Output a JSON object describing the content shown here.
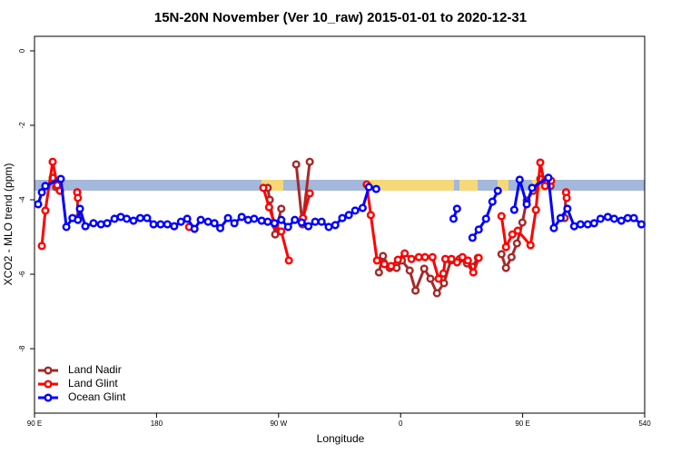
{
  "chart_data": {
    "type": "line",
    "title": "15N-20N November (Ver 10_raw)   2015-01-01 to 2020-12-31",
    "x_label": "Longitude",
    "y_label": "XCO2 - MLO trend (ppm)",
    "xlim": [
      90,
      540
    ],
    "ylim": [
      -9.73,
      0.39
    ],
    "xticks": [
      {
        "value": 90,
        "label": "90 E"
      },
      180,
      {
        "value": 270,
        "label": "90 W"
      },
      {
        "value": 360,
        "label": "0"
      },
      {
        "value": 450,
        "label": "90 E"
      },
      540
    ],
    "yticks": [
      -8,
      -6,
      -4,
      -2,
      0
    ],
    "legend": "bottom-left",
    "series": [
      {
        "name": "Land Nadir",
        "color": "#a52a2a",
        "x": [
          103.4,
          106,
          115,
          121.5,
          122,
          200,
          262,
          263.5,
          267.5,
          272,
          280,
          283,
          287.6,
          293,
          330,
          344,
          347,
          352,
          357,
          361,
          366.7,
          371,
          377.4,
          382,
          386.8,
          392,
          397,
          403.6,
          409,
          413,
          417,
          425,
          434.4,
          437.7,
          441.8,
          445.8,
          449.8,
          453,
          457.8,
          463,
          466.5,
          470.6,
          476,
          481,
          482
        ],
        "values": [
          -3.41,
          -3.66,
          null,
          -3.8,
          -4.49,
          null,
          -3.68,
          -4.0,
          -4.93,
          -4.24,
          null,
          -3.05,
          -4.66,
          -2.98,
          null,
          -5.95,
          -5.51,
          -5.83,
          -5.83,
          -5.63,
          -5.9,
          -6.44,
          -5.85,
          -6.12,
          -6.51,
          -6.24,
          -5.63,
          -5.59,
          -5.71,
          -5.8,
          -5.56,
          null,
          -5.46,
          -5.83,
          -5.54,
          -5.17,
          -4.61,
          -4.02,
          -3.76,
          -3.44,
          -3.49,
          -3.63,
          null,
          -4.49,
          -3.8
        ]
      },
      {
        "name": "Land Glint",
        "color": "#ff0000",
        "x": [
          95.4,
          98,
          103.4,
          106.8,
          108.8,
          115,
          121.5,
          122,
          160,
          204,
          230,
          258.8,
          263,
          267.5,
          272,
          277.6,
          285,
          288,
          293,
          320,
          335,
          338,
          342.6,
          348,
          353,
          358,
          363,
          368,
          373.4,
          378,
          383.5,
          388,
          391.5,
          393,
          397.5,
          401.6,
          405.6,
          409.6,
          413.6,
          417.6,
          425,
          434.4,
          437.7,
          442.4,
          446.4,
          455.8,
          459.8,
          463,
          466.5,
          471,
          476,
          482,
          482.5
        ],
        "values": [
          -5.24,
          -4.29,
          -2.98,
          -3.61,
          -3.76,
          null,
          -3.8,
          -3.95,
          null,
          -4.73,
          null,
          -3.68,
          -4.2,
          -4.68,
          -4.85,
          -5.63,
          null,
          -4.49,
          -3.83,
          null,
          -3.59,
          -4.41,
          -5.63,
          -5.73,
          -5.78,
          -5.61,
          -5.44,
          -5.59,
          -5.54,
          -5.54,
          -5.54,
          -6.12,
          -5.98,
          -5.59,
          -5.59,
          -5.68,
          -5.54,
          -5.63,
          -5.95,
          -5.56,
          null,
          -4.44,
          -5.27,
          -4.93,
          -4.83,
          -5.22,
          -4.27,
          -3.0,
          -3.63,
          -3.49,
          null,
          -3.8,
          -3.95
        ]
      },
      {
        "name": "Ocean Glint",
        "color": "#0000ff",
        "x": [
          92.7,
          95.4,
          98,
          109.4,
          113.5,
          118,
          122,
          123.5,
          127.5,
          133.5,
          139,
          143.6,
          149,
          153.6,
          158,
          163,
          168,
          173,
          177.8,
          183,
          188,
          193,
          198,
          202.6,
          208,
          212.6,
          218,
          222.7,
          227,
          232.7,
          237.4,
          242.8,
          247.5,
          252,
          257.5,
          262,
          267,
          272,
          277,
          282,
          287,
          292,
          297,
          301.7,
          307,
          311.8,
          317,
          321.8,
          326.5,
          332,
          336.6,
          342,
          370,
          399,
          401.6,
          410,
          413,
          417.6,
          423,
          427.7,
          431.7,
          438,
          443.8,
          447.8,
          453,
          457,
          469,
          473,
          478,
          483,
          488,
          492.7,
          498,
          502.7,
          507.4,
          512.8,
          517.5,
          522.8,
          527.5,
          532,
          537.6
        ],
        "values": [
          -4.12,
          -3.8,
          -3.63,
          -3.44,
          -4.73,
          -4.49,
          -4.54,
          -4.24,
          -4.71,
          -4.63,
          -4.66,
          -4.63,
          -4.51,
          -4.46,
          -4.51,
          -4.56,
          -4.49,
          -4.49,
          -4.66,
          -4.66,
          -4.66,
          -4.71,
          -4.59,
          -4.51,
          -4.78,
          -4.54,
          -4.59,
          -4.63,
          -4.76,
          -4.49,
          -4.63,
          -4.46,
          -4.54,
          -4.51,
          -4.56,
          -4.59,
          -4.63,
          -4.54,
          -4.73,
          -4.54,
          -4.61,
          -4.71,
          -4.59,
          -4.59,
          -4.73,
          -4.68,
          -4.49,
          -4.41,
          -4.29,
          -4.22,
          -3.66,
          -3.71,
          null,
          -4.51,
          -4.24,
          null,
          -5.02,
          -4.8,
          -4.51,
          -4.05,
          -3.76,
          null,
          -4.27,
          -3.46,
          -4.12,
          -3.68,
          -3.41,
          -4.76,
          -4.49,
          -4.24,
          -4.71,
          -4.66,
          -4.66,
          -4.63,
          -4.51,
          -4.46,
          -4.51,
          -4.56,
          -4.49,
          -4.49,
          -4.66
        ]
      }
    ]
  }
}
